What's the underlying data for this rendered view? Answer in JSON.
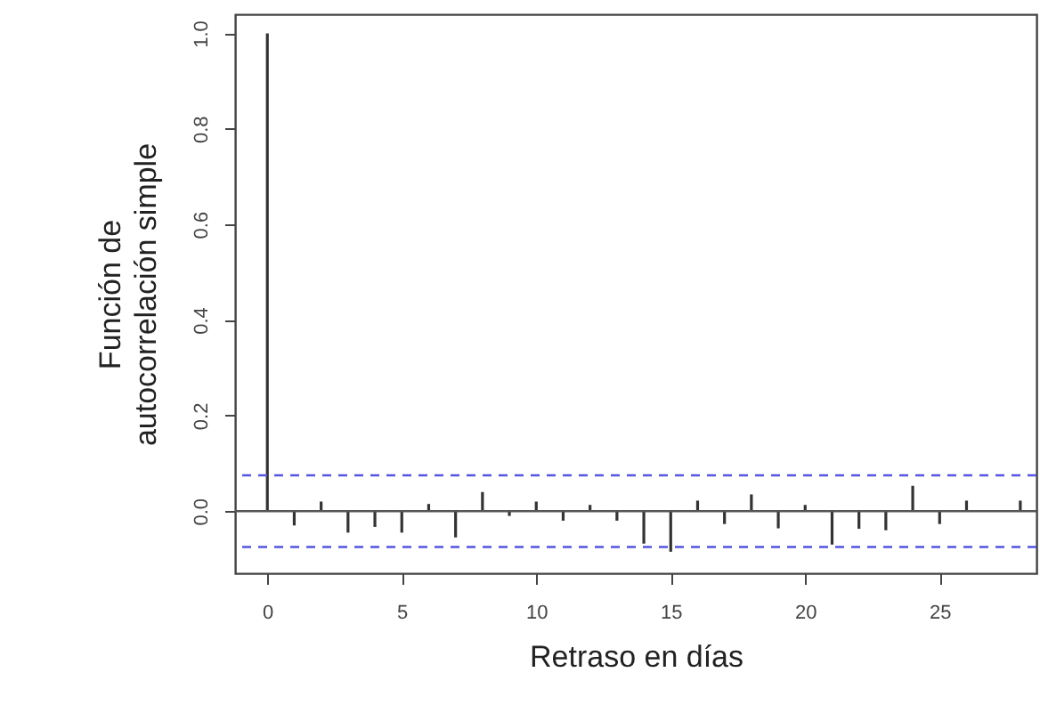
{
  "chart_data": {
    "type": "bar",
    "xlabel": "Retraso en días",
    "ylabel": "Función de\nautocorrelación simple",
    "x": [
      0,
      1,
      2,
      3,
      4,
      5,
      6,
      7,
      8,
      9,
      10,
      11,
      12,
      13,
      14,
      15,
      16,
      17,
      18,
      19,
      20,
      21,
      22,
      23,
      24,
      25,
      26,
      27,
      28
    ],
    "series": [
      {
        "color": "#333333",
        "values": [
          1.0,
          -0.03,
          0.02,
          -0.045,
          -0.033,
          -0.045,
          0.015,
          -0.055,
          0.04,
          -0.01,
          0.02,
          -0.02,
          0.013,
          -0.02,
          -0.068,
          -0.085,
          0.022,
          -0.027,
          0.035,
          -0.036,
          0.013,
          -0.07,
          -0.037,
          -0.04,
          0.053,
          -0.027,
          0.022,
          0.0,
          0.022
        ]
      }
    ],
    "xlim": [
      -1.2,
      28.6
    ],
    "xticks": [
      0,
      5,
      10,
      15,
      20,
      25
    ],
    "ylim": [
      -0.13,
      1.04
    ],
    "yticks": [
      {
        "value": 0,
        "label": "0.0"
      },
      0.2,
      0.4,
      0.6,
      0.8,
      {
        "value": 1,
        "label": "1.0"
      }
    ],
    "ref_lines": [
      {
        "axis": "y",
        "value": 0,
        "color": "#555555",
        "line_style": "solid"
      },
      {
        "axis": "y",
        "value": 0.075,
        "color": "#5555dd",
        "line_style": "dashed"
      },
      {
        "axis": "y",
        "value": -0.075,
        "color": "#5555dd",
        "line_style": "dashed"
      }
    ],
    "grid": false
  }
}
